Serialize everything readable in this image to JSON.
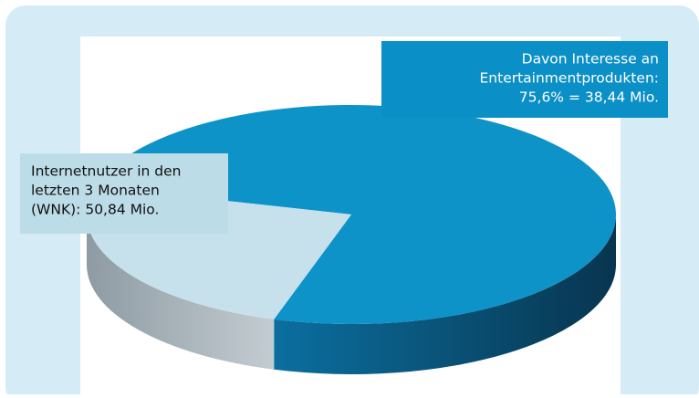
{
  "chart_data": {
    "type": "pie",
    "categories": [
      null,
      null
    ],
    "values": [
      75.6,
      24.4
    ],
    "colors": [
      "#0e93c9",
      "#c6e1ec"
    ],
    "annotations": [
      {
        "lines": [
          "Davon Interesse an",
          "Entertainmentprodukten:",
          "75,6% = 38,44 Mio."
        ]
      },
      {
        "lines": [
          "Internetnutzer in den",
          "letzten 3 Monaten",
          "(WNK): 50,84 Mio."
        ]
      }
    ]
  }
}
